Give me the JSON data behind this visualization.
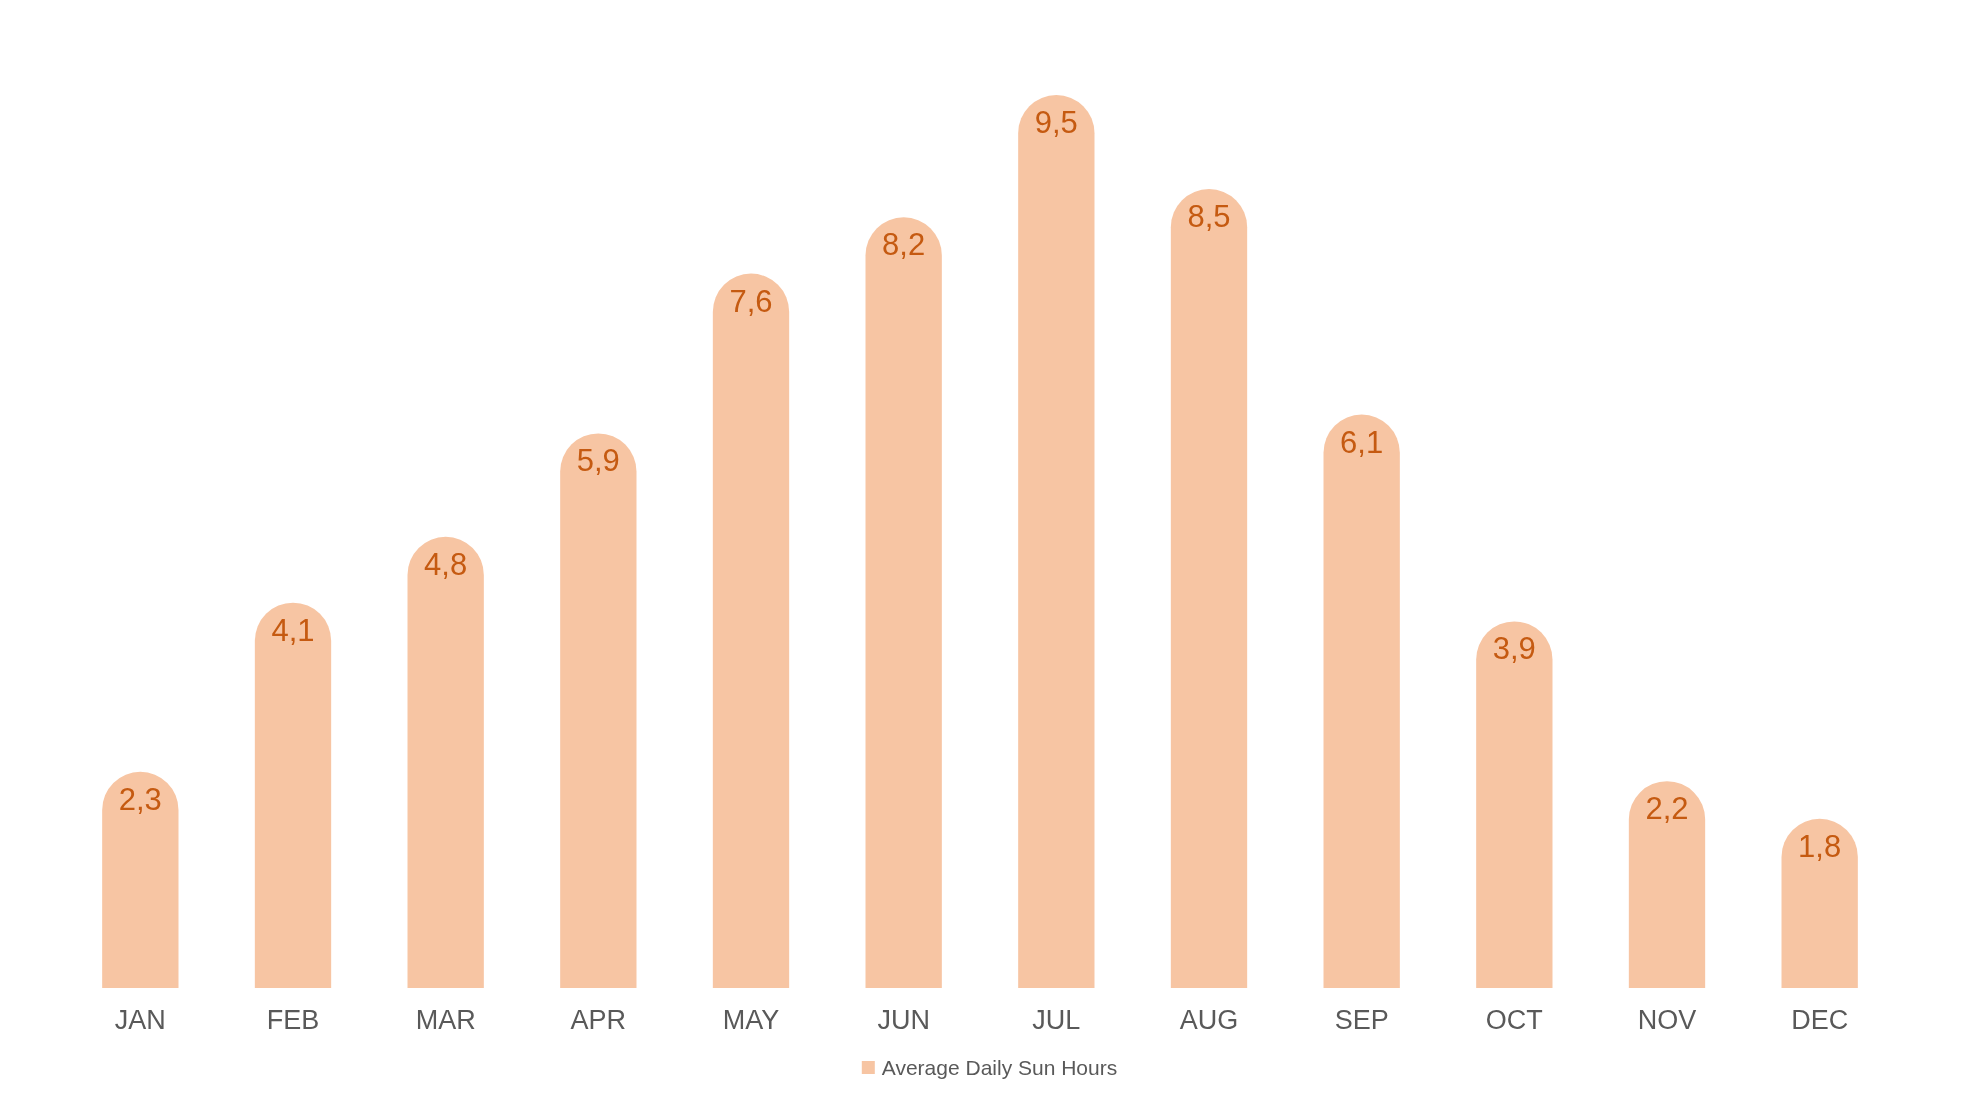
{
  "chart_data": {
    "type": "bar",
    "categories": [
      "JAN",
      "FEB",
      "MAR",
      "APR",
      "MAY",
      "JUN",
      "JUL",
      "AUG",
      "SEP",
      "OCT",
      "NOV",
      "DEC"
    ],
    "series": [
      {
        "name": "Average Daily Sun Hours",
        "color": "#f7c5a3",
        "values": [
          2.3,
          4.1,
          4.8,
          5.9,
          7.6,
          8.2,
          9.5,
          8.5,
          6.1,
          3.9,
          2.2,
          1.8
        ],
        "value_labels": [
          "2,3",
          "4,1",
          "4,8",
          "5,9",
          "7,6",
          "8,2",
          "9,5",
          "8,5",
          "6,1",
          "3,9",
          "2,2",
          "1,8"
        ]
      }
    ],
    "legend": "bottom"
  }
}
